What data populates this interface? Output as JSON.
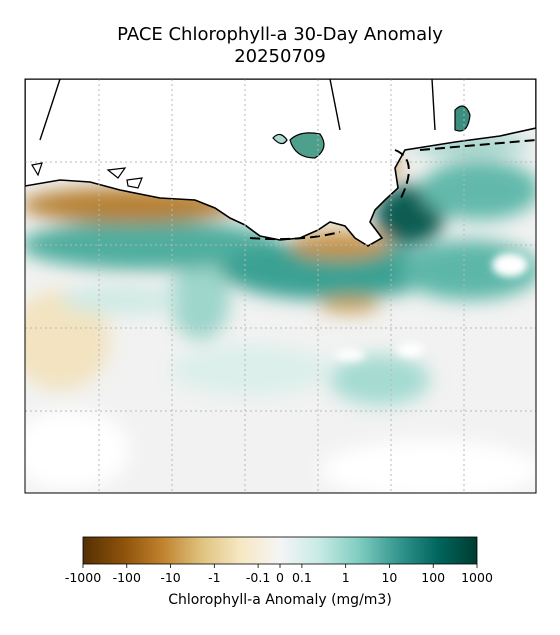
{
  "title": "PACE Chlorophyll-a 30-Day Anomaly",
  "date": "20250709",
  "colorbar": {
    "label": "Chlorophyll-a Anomaly (mg/m3)",
    "scale": "symlog",
    "linthresh": 0.1,
    "lim": [
      -1000,
      1000
    ],
    "ticks": [
      -1000,
      -100,
      -10,
      -1,
      -0.1,
      0,
      0.1,
      1,
      10,
      100,
      1000
    ],
    "colors": [
      "#543005",
      "#8c510a",
      "#bf812d",
      "#dfc27d",
      "#f6e8c3",
      "#f5f5f5",
      "#c7eae5",
      "#80cdc1",
      "#35978f",
      "#01665e",
      "#003c30"
    ]
  }
}
